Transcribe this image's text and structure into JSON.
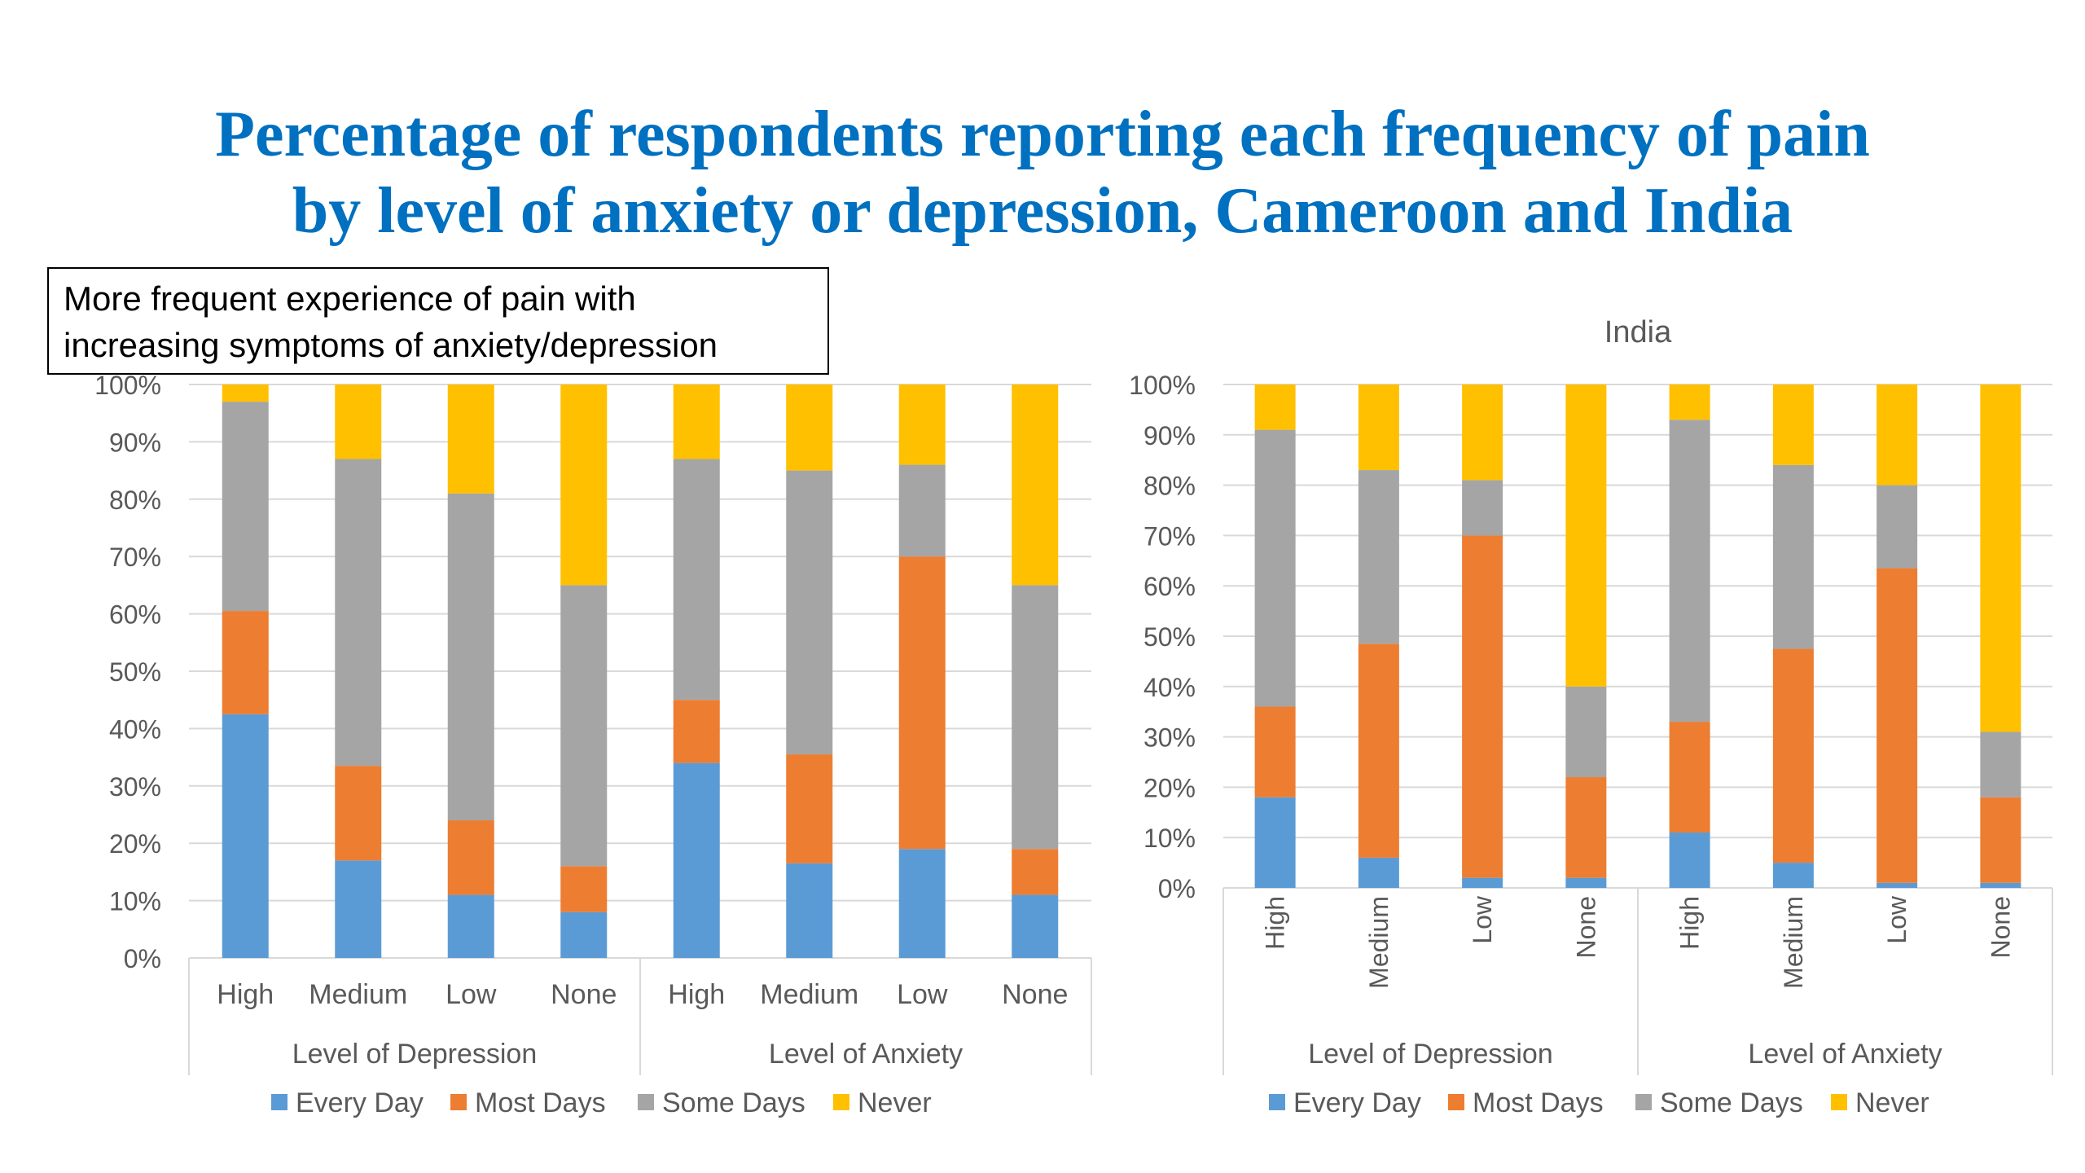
{
  "slide": {
    "title_line1": "Percentage of respondents reporting each frequency of pain",
    "title_line2": "by level of anxiety or depression, Cameroon and India",
    "callout_line1": "More frequent experience of pain with",
    "callout_line2": "increasing symptoms of anxiety/depression"
  },
  "colors": {
    "Every Day": "#5B9BD5",
    "Most Days": "#ED7D31",
    "Some Days": "#A5A5A5",
    "Never": "#FFC000"
  },
  "chart_data": [
    {
      "type": "bar",
      "stacked": true,
      "title": "",
      "categories": [
        "High",
        "Medium",
        "Low",
        "None",
        "High",
        "Medium",
        "Low",
        "None"
      ],
      "groups": [
        {
          "label": "Level of Depression",
          "start": 0,
          "end": 4
        },
        {
          "label": "Level of Anxiety",
          "start": 4,
          "end": 8
        }
      ],
      "series": [
        {
          "name": "Every Day",
          "values": [
            42.5,
            17,
            11,
            8,
            34,
            16.5,
            19,
            11
          ]
        },
        {
          "name": "Most Days",
          "values": [
            18,
            16.5,
            13,
            8,
            11,
            19,
            51,
            8
          ]
        },
        {
          "name": "Some Days",
          "values": [
            36.5,
            53.5,
            57,
            49,
            42,
            49.5,
            16,
            46
          ]
        },
        {
          "name": "Never",
          "values": [
            3,
            13,
            19,
            35,
            13,
            15,
            14,
            35
          ]
        }
      ],
      "ylim": [
        0,
        100
      ],
      "yticks": [
        "0%",
        "10%",
        "20%",
        "30%",
        "40%",
        "50%",
        "60%",
        "70%",
        "80%",
        "90%",
        "100%"
      ],
      "legend": "bottom",
      "grid": true,
      "label_orientation": "horizontal"
    },
    {
      "type": "bar",
      "stacked": true,
      "title": "India",
      "categories": [
        "High",
        "Medium",
        "Low",
        "None",
        "High",
        "Medium",
        "Low",
        "None"
      ],
      "groups": [
        {
          "label": "Level of Depression",
          "start": 0,
          "end": 4
        },
        {
          "label": "Level of Anxiety",
          "start": 4,
          "end": 8
        }
      ],
      "series": [
        {
          "name": "Every Day",
          "values": [
            18,
            6,
            2,
            2,
            11,
            5,
            1,
            1
          ]
        },
        {
          "name": "Most Days",
          "values": [
            18,
            42.5,
            68,
            20,
            22,
            42.5,
            62.5,
            17
          ]
        },
        {
          "name": "Some Days",
          "values": [
            55,
            34.5,
            11,
            18,
            60,
            36.5,
            16.5,
            13
          ]
        },
        {
          "name": "Never",
          "values": [
            9,
            17,
            19,
            60,
            7,
            16,
            20,
            69
          ]
        }
      ],
      "ylim": [
        0,
        100
      ],
      "yticks": [
        "0%",
        "10%",
        "20%",
        "30%",
        "40%",
        "50%",
        "60%",
        "70%",
        "80%",
        "90%",
        "100%"
      ],
      "legend": "bottom",
      "grid": true,
      "label_orientation": "vertical"
    }
  ]
}
